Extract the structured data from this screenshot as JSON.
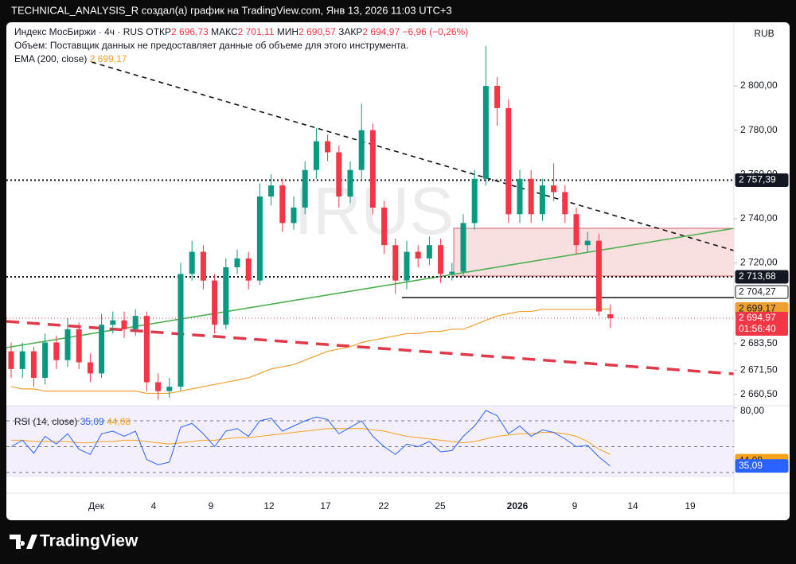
{
  "chart_data": {
    "type": "candlestick",
    "author_line": "TECHNICAL_ANALYSIS_R создал(а) график на TradingView.com, Янв 13, 2026 11:03 UTC+3",
    "symbol": "Индекс МосБиржи · 4ч · RUS",
    "legend_keys": [
      "ОТКР",
      "МАКС",
      "МИН",
      "ЗАКР"
    ],
    "last_labels": [
      "2 696,73",
      "2 701,11",
      "2 690,57",
      "2 694,97"
    ],
    "change_label": "−6,96 (−0,26%)",
    "volume_note": "Объем: Поставщик данных не предоставляет данные об объеме для этого инструмента.",
    "currency": "RUB",
    "watermark": "IRUS",
    "countdown": "01:56:40",
    "brand": "TradingView",
    "up_color": "#089981",
    "down_color": "#f23645",
    "ylim": [
      2655.4,
      2828.8
    ],
    "yticks": [
      {
        "value": 2800,
        "label": "2 800,00"
      },
      {
        "value": 2780,
        "label": "2 780,00"
      },
      {
        "value": 2760,
        "label": "2 760,00"
      },
      {
        "value": 2740,
        "label": "2 740,00"
      },
      {
        "value": 2720,
        "label": "2 720,00"
      },
      {
        "value": 2683.5,
        "label": "2 683,50"
      },
      {
        "value": 2671.5,
        "label": "2 671,50"
      },
      {
        "value": 2660.5,
        "label": "2 660,50"
      }
    ],
    "levels": [
      {
        "value": 2757.39,
        "label": "2 757,39"
      },
      {
        "value": 2713.68,
        "label": "2 713,68"
      },
      {
        "value": 2704.27,
        "label": "2 704,27"
      }
    ],
    "x_labels": [
      "Дек",
      "4",
      "9",
      "12",
      "17",
      "22",
      "25",
      "2026",
      "9",
      "14",
      "19"
    ],
    "ohlc": [
      [
        2680,
        2684,
        2668,
        2672
      ],
      [
        2672,
        2684,
        2668,
        2680
      ],
      [
        2680,
        2682,
        2664,
        2668
      ],
      [
        2668,
        2688,
        2665,
        2684
      ],
      [
        2684,
        2687,
        2672,
        2676
      ],
      [
        2676,
        2695,
        2673,
        2690
      ],
      [
        2690,
        2693,
        2672,
        2675
      ],
      [
        2675,
        2679,
        2666,
        2670
      ],
      [
        2670,
        2697,
        2668,
        2692
      ],
      [
        2692,
        2698,
        2688,
        2694
      ],
      [
        2694,
        2698,
        2686,
        2690
      ],
      [
        2690,
        2699,
        2687,
        2696
      ],
      [
        2696,
        2698,
        2662,
        2666
      ],
      [
        2666,
        2670,
        2658,
        2662
      ],
      [
        2662,
        2668,
        2659,
        2664
      ],
      [
        2664,
        2720,
        2662,
        2715
      ],
      [
        2715,
        2730,
        2712,
        2725
      ],
      [
        2725,
        2728,
        2708,
        2712
      ],
      [
        2712,
        2715,
        2688,
        2692
      ],
      [
        2692,
        2722,
        2690,
        2718
      ],
      [
        2718,
        2726,
        2715,
        2722
      ],
      [
        2722,
        2725,
        2708,
        2712
      ],
      [
        2712,
        2756,
        2710,
        2750
      ],
      [
        2750,
        2760,
        2746,
        2755
      ],
      [
        2755,
        2758,
        2734,
        2738
      ],
      [
        2738,
        2750,
        2735,
        2745
      ],
      [
        2745,
        2766,
        2742,
        2762
      ],
      [
        2762,
        2781,
        2758,
        2775
      ],
      [
        2775,
        2778,
        2766,
        2770
      ],
      [
        2770,
        2773,
        2745,
        2750
      ],
      [
        2750,
        2766,
        2747,
        2762
      ],
      [
        2762,
        2792,
        2758,
        2780
      ],
      [
        2780,
        2783,
        2742,
        2745
      ],
      [
        2745,
        2748,
        2724,
        2728
      ],
      [
        2728,
        2731,
        2706,
        2712
      ],
      [
        2712,
        2730,
        2708,
        2725
      ],
      [
        2725,
        2728,
        2718,
        2722
      ],
      [
        2722,
        2732,
        2719,
        2728
      ],
      [
        2728,
        2731,
        2711,
        2715
      ],
      [
        2715,
        2720,
        2712,
        2716
      ],
      [
        2716,
        2742,
        2714,
        2738
      ],
      [
        2738,
        2762,
        2735,
        2758
      ],
      [
        2758,
        2818,
        2755,
        2800
      ],
      [
        2800,
        2804,
        2782,
        2790
      ],
      [
        2790,
        2794,
        2738,
        2742
      ],
      [
        2742,
        2762,
        2738,
        2758
      ],
      [
        2758,
        2762,
        2738,
        2742
      ],
      [
        2742,
        2758,
        2739,
        2755
      ],
      [
        2755,
        2765,
        2748,
        2752
      ],
      [
        2752,
        2755,
        2738,
        2742
      ],
      [
        2742,
        2745,
        2724,
        2728
      ],
      [
        2728,
        2734,
        2725,
        2730
      ],
      [
        2730,
        2733,
        2696,
        2698
      ],
      [
        2696.73,
        2701.11,
        2690.57,
        2694.97
      ]
    ],
    "ema": {
      "name": "EMA (200, close)",
      "value_label": "2 699,17",
      "color": "#f0a030",
      "values": [
        2664,
        2663,
        2663,
        2662,
        2662,
        2662,
        2662,
        2662,
        2662,
        2662,
        2662,
        2662,
        2661,
        2661,
        2661,
        2662,
        2663,
        2664,
        2665,
        2666,
        2667,
        2668,
        2670,
        2672,
        2673,
        2674,
        2676,
        2678,
        2680,
        2681,
        2682,
        2684,
        2685,
        2686,
        2687,
        2688,
        2688,
        2689,
        2689,
        2690,
        2690,
        2692,
        2694,
        2696,
        2697,
        2698,
        2698,
        2699,
        2699,
        2699,
        2699,
        2699,
        2699,
        2699.17
      ]
    },
    "rsi": {
      "name": "RSI (14, close)",
      "value_label": "35,09",
      "ma_label": "44,08",
      "color": "#2962ff",
      "ma_color": "#f7a21b",
      "ylim": [
        26.3,
        81.7
      ],
      "ticks": [
        {
          "value": 80,
          "label": "80,00"
        }
      ],
      "levels": [
        70,
        50,
        30
      ],
      "values": [
        50,
        55,
        45,
        58,
        52,
        60,
        48,
        44,
        60,
        62,
        58,
        62,
        40,
        36,
        38,
        65,
        68,
        60,
        50,
        62,
        64,
        58,
        70,
        72,
        62,
        66,
        70,
        73,
        71,
        60,
        65,
        70,
        58,
        50,
        44,
        52,
        50,
        54,
        46,
        47,
        58,
        66,
        78,
        74,
        60,
        66,
        58,
        63,
        61,
        56,
        50,
        51,
        42,
        35.09
      ],
      "ma_values": [
        55,
        55,
        54,
        54,
        54,
        54,
        53,
        53,
        54,
        54,
        55,
        55,
        54,
        53,
        52,
        53,
        54,
        55,
        55,
        56,
        57,
        57,
        58,
        59,
        60,
        61,
        62,
        63,
        64,
        64,
        64,
        64,
        63,
        62,
        60,
        58,
        57,
        56,
        55,
        54,
        53,
        54,
        56,
        58,
        59,
        60,
        60,
        61,
        61,
        60,
        58,
        54,
        48,
        44.08
      ]
    }
  }
}
